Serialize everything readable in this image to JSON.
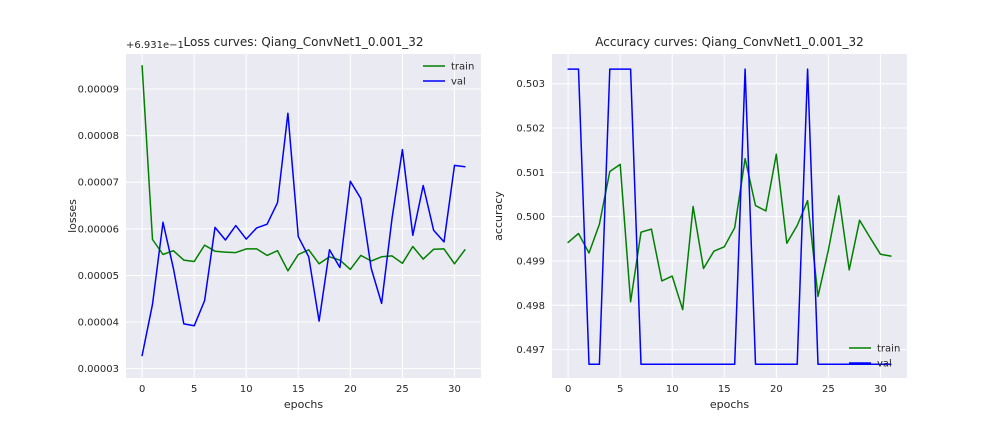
{
  "chart_data": [
    {
      "type": "line",
      "title": "Loss curves: Qiang_ConvNet1_0.001_32",
      "xlabel": "epochs",
      "ylabel": "losses",
      "offset_text": "+6.931e−1",
      "xlim": [
        -1.55,
        32.55
      ],
      "ylim": [
        2.8e-05,
        9.75e-05
      ],
      "xticks": [
        0,
        5,
        10,
        15,
        20,
        25,
        30
      ],
      "yticks": [
        3e-05,
        4e-05,
        5e-05,
        6e-05,
        7e-05,
        8e-05,
        9e-05
      ],
      "ytick_labels": [
        "0.00003",
        "0.00004",
        "0.00005",
        "0.00006",
        "0.00007",
        "0.00008",
        "0.00009"
      ],
      "grid": true,
      "legend_position": "top-right",
      "x": [
        0,
        1,
        2,
        3,
        4,
        5,
        6,
        7,
        8,
        9,
        10,
        11,
        12,
        13,
        14,
        15,
        16,
        17,
        18,
        19,
        20,
        21,
        22,
        23,
        24,
        25,
        26,
        27,
        28,
        29,
        30,
        31
      ],
      "series": [
        {
          "name": "train",
          "color": "#008000",
          "values": [
            9.5e-05,
            5.77e-05,
            5.45e-05,
            5.53e-05,
            5.33e-05,
            5.3e-05,
            5.65e-05,
            5.52e-05,
            5.5e-05,
            5.49e-05,
            5.57e-05,
            5.57e-05,
            5.43e-05,
            5.53e-05,
            5.1e-05,
            5.45e-05,
            5.55e-05,
            5.25e-05,
            5.4e-05,
            5.33e-05,
            5.13e-05,
            5.43e-05,
            5.31e-05,
            5.4e-05,
            5.42e-05,
            5.26e-05,
            5.62e-05,
            5.35e-05,
            5.56e-05,
            5.57e-05,
            5.25e-05,
            5.55e-05
          ]
        },
        {
          "name": "val",
          "color": "#0000ff",
          "values": [
            3.28e-05,
            4.38e-05,
            6.14e-05,
            5.15e-05,
            3.96e-05,
            3.92e-05,
            4.46e-05,
            6.03e-05,
            5.76e-05,
            6.07e-05,
            5.78e-05,
            6.02e-05,
            6.1e-05,
            6.56e-05,
            8.48e-05,
            5.83e-05,
            5.4e-05,
            4.02e-05,
            5.55e-05,
            5.17e-05,
            7.02e-05,
            6.65e-05,
            5.15e-05,
            4.4e-05,
            6.22e-05,
            7.7e-05,
            5.86e-05,
            6.93e-05,
            5.97e-05,
            5.72e-05,
            7.36e-05,
            7.33e-05
          ]
        }
      ]
    },
    {
      "type": "line",
      "title": "Accuracy curves: Qiang_ConvNet1_0.001_32",
      "xlabel": "epochs",
      "ylabel": "accuracy",
      "xlim": [
        -1.55,
        32.55
      ],
      "ylim": [
        0.49636,
        0.50367
      ],
      "xticks": [
        0,
        5,
        10,
        15,
        20,
        25,
        30
      ],
      "yticks": [
        0.497,
        0.498,
        0.499,
        0.5,
        0.501,
        0.502,
        0.503
      ],
      "ytick_labels": [
        "0.497",
        "0.498",
        "0.499",
        "0.500",
        "0.501",
        "0.502",
        "0.503"
      ],
      "grid": true,
      "legend_position": "bottom-right",
      "x": [
        0,
        1,
        2,
        3,
        4,
        5,
        6,
        7,
        8,
        9,
        10,
        11,
        12,
        13,
        14,
        15,
        16,
        17,
        18,
        19,
        20,
        21,
        22,
        23,
        24,
        25,
        26,
        27,
        28,
        29,
        30,
        31
      ],
      "series": [
        {
          "name": "train",
          "color": "#008000",
          "values": [
            0.49942,
            0.49962,
            0.49918,
            0.49983,
            0.50102,
            0.50118,
            0.49808,
            0.49965,
            0.49972,
            0.49855,
            0.49866,
            0.4979,
            0.50023,
            0.49883,
            0.49922,
            0.49932,
            0.49975,
            0.50131,
            0.50025,
            0.50013,
            0.50141,
            0.4994,
            0.4998,
            0.50036,
            0.4982,
            0.49925,
            0.50047,
            0.4988,
            0.49992,
            0.49953,
            0.49915,
            0.49911
          ]
        },
        {
          "name": "val",
          "color": "#0000ff",
          "values": [
            0.50333,
            0.50333,
            0.49667,
            0.49667,
            0.50333,
            0.50333,
            0.50333,
            0.49667,
            0.49667,
            0.49667,
            0.49667,
            0.49667,
            0.49667,
            0.49667,
            0.49667,
            0.49667,
            0.49667,
            0.50333,
            0.49667,
            0.49667,
            0.49667,
            0.49667,
            0.49667,
            0.50333,
            0.49667,
            0.49667,
            0.49667,
            0.49667,
            0.49667,
            0.49667,
            0.49667,
            0.49667
          ]
        }
      ]
    }
  ]
}
